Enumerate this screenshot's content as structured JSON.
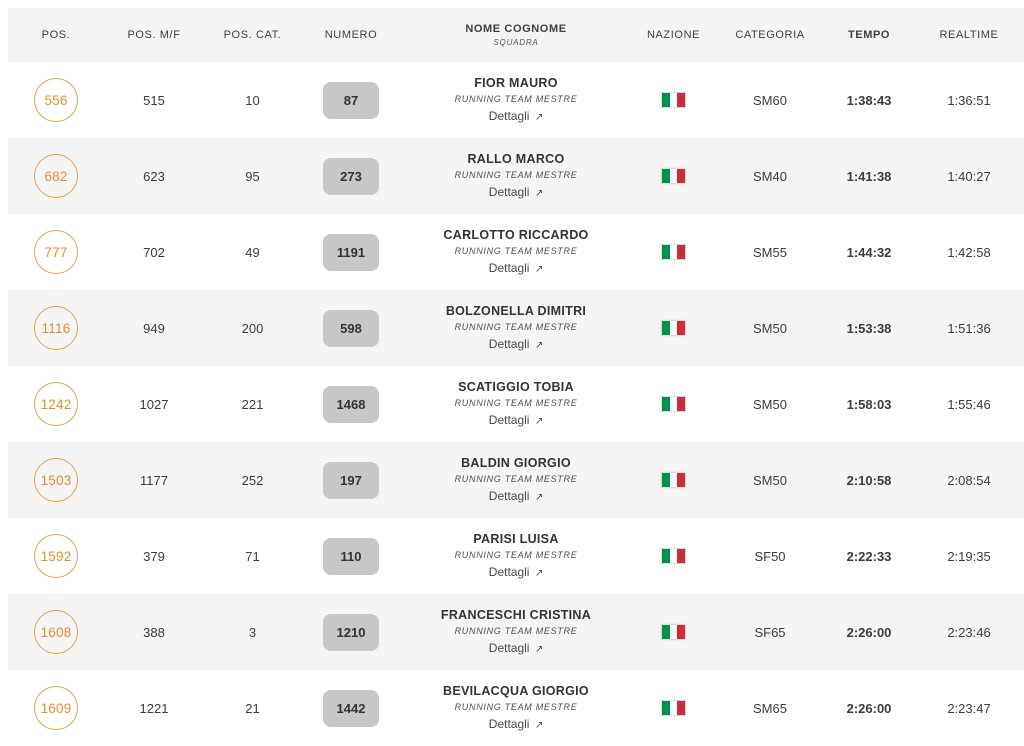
{
  "table": {
    "header": {
      "pos": "POS.",
      "pos_mf": "POS. M/F",
      "pos_cat": "POS. CAT.",
      "numero": "NUMERO",
      "nome": "NOME COGNOME",
      "nome_sub": "SQUADRA",
      "nazione": "NAZIONE",
      "categoria": "CATEGORIA",
      "tempo": "TEMPO",
      "realtime": "REALTIME"
    },
    "details_label": "Dettagli",
    "details_icon": "↗",
    "nazione_flag": "italy-flag",
    "colors": {
      "accent_orange_border": "#e9a24b",
      "accent_orange_text": "#e78f2e",
      "row_alt_bg": "#f5f5f5",
      "badge_bg": "#c7c7c7",
      "flag_green": "#009246",
      "flag_red": "#ce2b37"
    },
    "rows": [
      {
        "pos": "556",
        "pos_mf": "515",
        "pos_cat": "10",
        "numero": "87",
        "nome": "FIOR MAURO",
        "squadra": "RUNNING TEAM MESTRE",
        "categoria": "SM60",
        "tempo": "1:38:43",
        "realtime": "1:36:51"
      },
      {
        "pos": "682",
        "pos_mf": "623",
        "pos_cat": "95",
        "numero": "273",
        "nome": "RALLO MARCO",
        "squadra": "RUNNING TEAM MESTRE",
        "categoria": "SM40",
        "tempo": "1:41:38",
        "realtime": "1:40:27"
      },
      {
        "pos": "777",
        "pos_mf": "702",
        "pos_cat": "49",
        "numero": "1191",
        "nome": "CARLOTTO RICCARDO",
        "squadra": "RUNNING TEAM MESTRE",
        "categoria": "SM55",
        "tempo": "1:44:32",
        "realtime": "1:42:58"
      },
      {
        "pos": "1116",
        "pos_mf": "949",
        "pos_cat": "200",
        "numero": "598",
        "nome": "BOLZONELLA DIMITRI",
        "squadra": "RUNNING TEAM MESTRE",
        "categoria": "SM50",
        "tempo": "1:53:38",
        "realtime": "1:51:36"
      },
      {
        "pos": "1242",
        "pos_mf": "1027",
        "pos_cat": "221",
        "numero": "1468",
        "nome": "SCATIGGIO TOBIA",
        "squadra": "RUNNING TEAM MESTRE",
        "categoria": "SM50",
        "tempo": "1:58:03",
        "realtime": "1:55:46"
      },
      {
        "pos": "1503",
        "pos_mf": "1177",
        "pos_cat": "252",
        "numero": "197",
        "nome": "BALDIN GIORGIO",
        "squadra": "RUNNING TEAM MESTRE",
        "categoria": "SM50",
        "tempo": "2:10:58",
        "realtime": "2:08:54"
      },
      {
        "pos": "1592",
        "pos_mf": "379",
        "pos_cat": "71",
        "numero": "110",
        "nome": "PARISI LUISA",
        "squadra": "RUNNING TEAM MESTRE",
        "categoria": "SF50",
        "tempo": "2:22:33",
        "realtime": "2:19:35"
      },
      {
        "pos": "1608",
        "pos_mf": "388",
        "pos_cat": "3",
        "numero": "1210",
        "nome": "FRANCESCHI CRISTINA",
        "squadra": "RUNNING TEAM MESTRE",
        "categoria": "SF65",
        "tempo": "2:26:00",
        "realtime": "2:23:46"
      },
      {
        "pos": "1609",
        "pos_mf": "1221",
        "pos_cat": "21",
        "numero": "1442",
        "nome": "BEVILACQUA GIORGIO",
        "squadra": "RUNNING TEAM MESTRE",
        "categoria": "SM65",
        "tempo": "2:26:00",
        "realtime": "2:23:47"
      }
    ]
  }
}
